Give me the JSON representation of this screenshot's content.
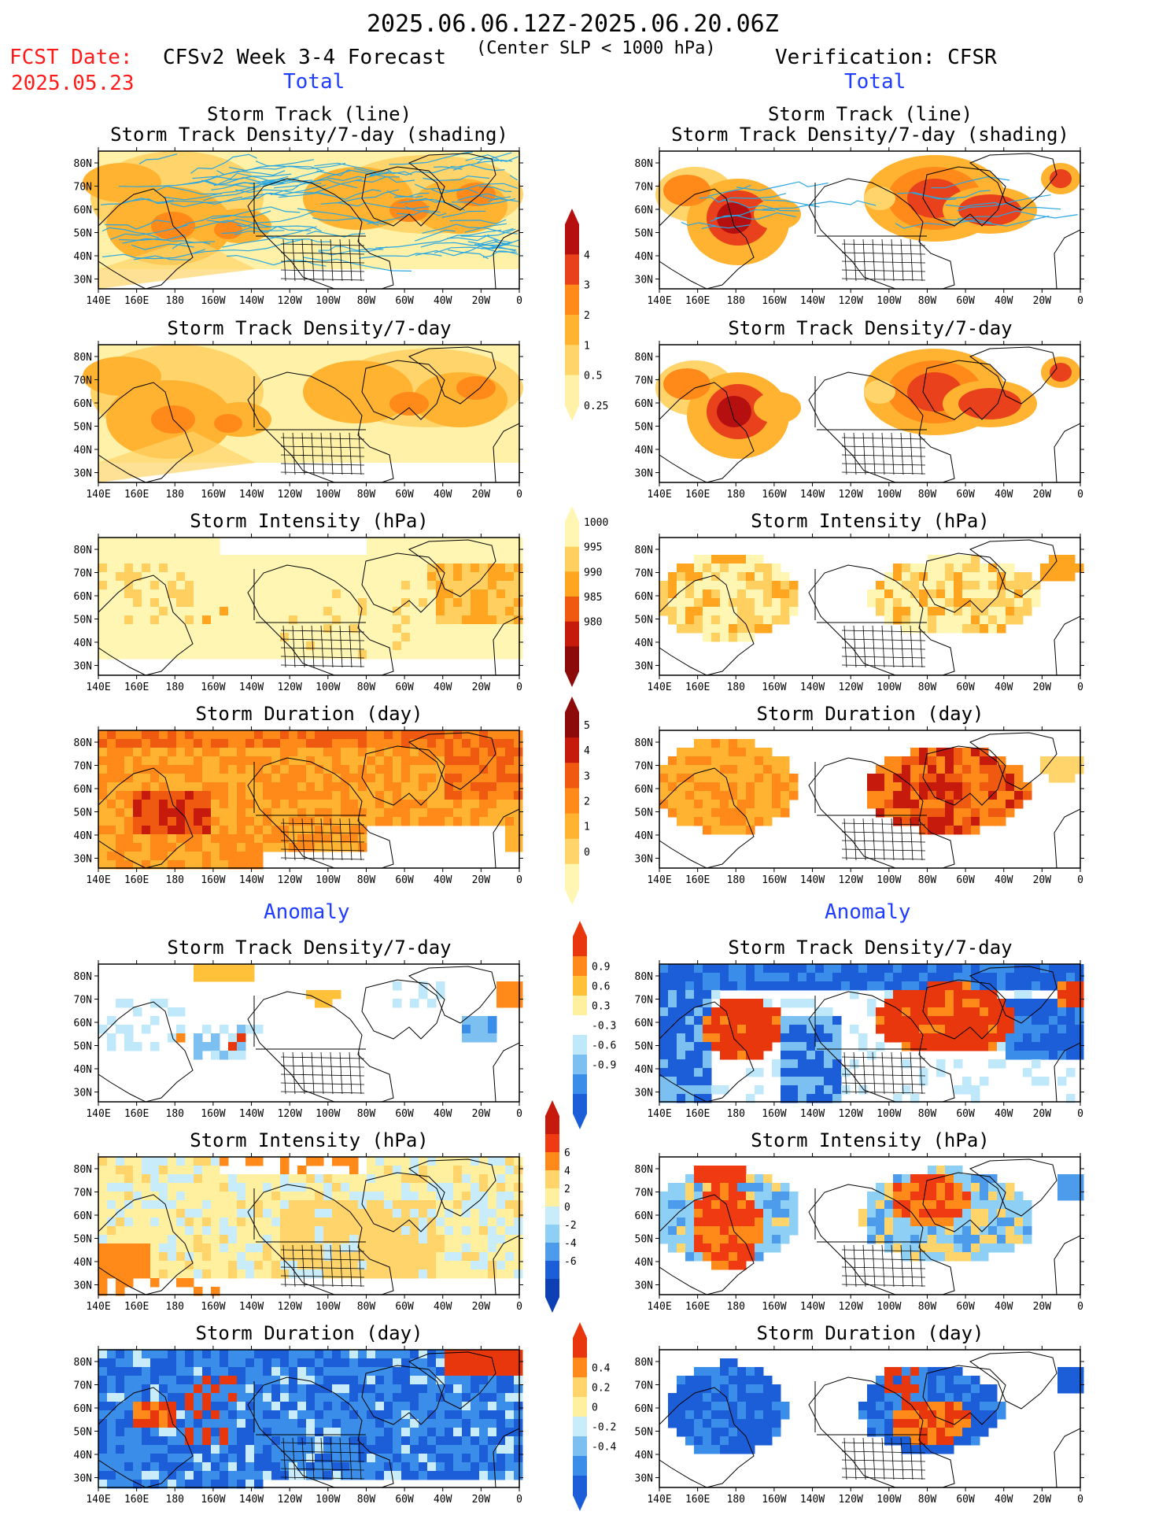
{
  "header": {
    "period": "2025.06.06.12Z-2025.06.20.06Z",
    "fcst_label": "FCST Date:",
    "fcst_date": "2025.05.23",
    "model_title": "CFSv2 Week 3-4 Forecast",
    "slp_condition": "(Center SLP < 1000 hPa)",
    "verification": "Verification: CFSR",
    "total_label_left": "Total",
    "total_label_right": "Total",
    "anomaly_label_left": "Anomaly",
    "anomaly_label_right": "Anomaly"
  },
  "panel_titles": {
    "track_line": "Storm Track (line)",
    "track_density_shading": "Storm Track Density/7-day (shading)",
    "track_density": "Storm Track Density/7-day",
    "intensity": "Storm Intensity (hPa)",
    "duration": "Storm Duration (day)"
  },
  "axes": {
    "lat_ticks": [
      "80N",
      "70N",
      "60N",
      "50N",
      "40N",
      "30N"
    ],
    "lon_ticks": [
      "140E",
      "160E",
      "180",
      "160W",
      "140W",
      "120W",
      "100W",
      "80W",
      "60W",
      "40W",
      "20W",
      "0"
    ]
  },
  "colorbars": {
    "density": {
      "labels": [
        "4",
        "3",
        "2",
        "1",
        "0.5",
        "0.25"
      ],
      "colors": [
        "#b50f0f",
        "#e8411c",
        "#ff8a1a",
        "#ffb330",
        "#ffd46a",
        "#fff2a8"
      ]
    },
    "intensity": {
      "labels": [
        "1000",
        "995",
        "990",
        "985",
        "980"
      ],
      "colors": [
        "#fff6b3",
        "#ffd060",
        "#ffa51f",
        "#ef5a10",
        "#c61b0c",
        "#8c0a0a"
      ]
    },
    "duration": {
      "labels": [
        "5",
        "4",
        "3",
        "2",
        "1",
        "0"
      ],
      "colors": [
        "#8c0a0a",
        "#c61b0c",
        "#ef5a10",
        "#ff8a1a",
        "#ffb330",
        "#ffd46a",
        "#fff6b3"
      ]
    },
    "density_anom": {
      "labels": [
        "0.9",
        "0.6",
        "0.3",
        "-0.3",
        "-0.6",
        "-0.9"
      ],
      "colors": [
        "#e8360d",
        "#ff8a1a",
        "#ffc13a",
        "#fff0a0",
        "#ffffff",
        "#bfe8fa",
        "#7cc0f2",
        "#3a8de8",
        "#1b5ed8"
      ]
    },
    "intensity_anom": {
      "labels": [
        "6",
        "4",
        "2",
        "0",
        "-2",
        "-4",
        "-6"
      ],
      "colors": [
        "#c61b0c",
        "#ef3a12",
        "#ff8a1a",
        "#ffd46a",
        "#fff0a0",
        "#c9ecfa",
        "#8ed0f5",
        "#4d9cec",
        "#1b5ed8",
        "#0d3fb5"
      ]
    },
    "duration_anom": {
      "labels": [
        "0.4",
        "0.2",
        "0",
        "-0.2",
        "-0.4"
      ],
      "colors": [
        "#e8360d",
        "#ff8a1a",
        "#ffd46a",
        "#fff0a0",
        "#c9ecfa",
        "#7cc0f2",
        "#3a8de8",
        "#1b5ed8"
      ]
    }
  },
  "panels": [
    {
      "id": "fc-track",
      "col": "left",
      "title_key": "track_line",
      "title2_key": "track_density_shading",
      "style": "density",
      "tracks": true
    },
    {
      "id": "ob-track",
      "col": "right",
      "title_key": "track_line",
      "title2_key": "track_density_shading",
      "style": "density_obs",
      "tracks": true
    },
    {
      "id": "fc-density",
      "col": "left",
      "title_key": "track_density",
      "style": "density"
    },
    {
      "id": "ob-density",
      "col": "right",
      "title_key": "track_density",
      "style": "density_obs"
    },
    {
      "id": "fc-intensity",
      "col": "left",
      "title_key": "intensity",
      "style": "intensity"
    },
    {
      "id": "ob-intensity",
      "col": "right",
      "title_key": "intensity",
      "style": "intensity_obs"
    },
    {
      "id": "fc-duration",
      "col": "left",
      "title_key": "duration",
      "style": "duration"
    },
    {
      "id": "ob-duration",
      "col": "right",
      "title_key": "duration",
      "style": "duration_obs"
    },
    {
      "id": "fc-density-anom",
      "col": "left",
      "title_key": "track_density",
      "style": "danom"
    },
    {
      "id": "ob-density-anom",
      "col": "right",
      "title_key": "track_density",
      "style": "danom_obs"
    },
    {
      "id": "fc-intensity-anom",
      "col": "left",
      "title_key": "intensity",
      "style": "ianom"
    },
    {
      "id": "ob-intensity-anom",
      "col": "right",
      "title_key": "intensity",
      "style": "ianom_obs"
    },
    {
      "id": "fc-duration-anom",
      "col": "left",
      "title_key": "duration",
      "style": "duranom"
    },
    {
      "id": "ob-duration-anom",
      "col": "right",
      "title_key": "duration",
      "style": "duranom_obs"
    }
  ]
}
